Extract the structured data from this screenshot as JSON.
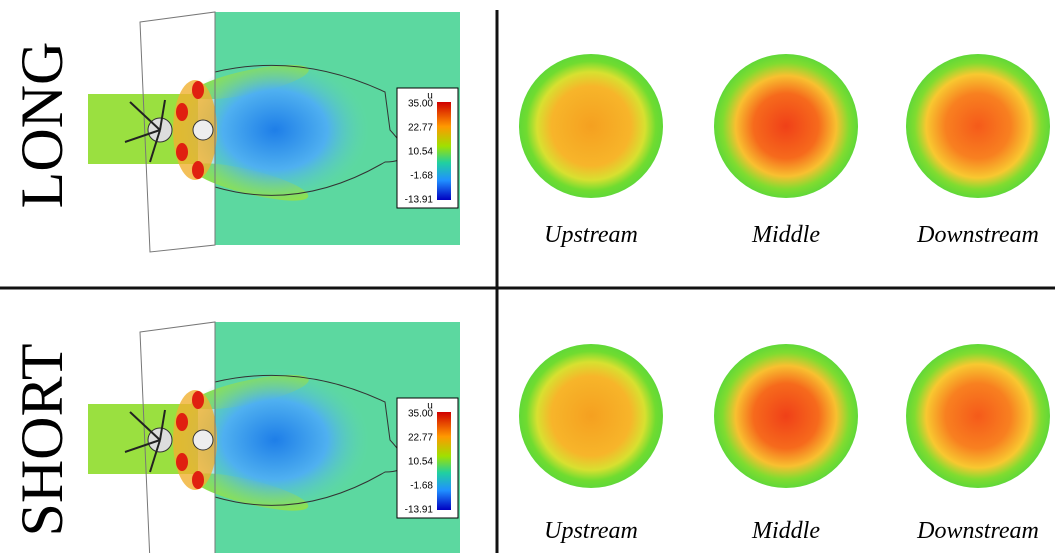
{
  "rows": [
    {
      "label": "LONG",
      "colorbar": {
        "title": "u",
        "ticks": [
          "35.00",
          "22.77",
          "10.54",
          "-1.68",
          "-13.91"
        ]
      },
      "sections": [
        "Upstream",
        "Middle",
        "Downstream"
      ]
    },
    {
      "label": "SHORT",
      "colorbar": {
        "title": "u",
        "ticks": [
          "35.00",
          "22.77",
          "10.54",
          "-1.68",
          "-13.91"
        ]
      },
      "sections": [
        "Upstream",
        "Middle",
        "Downstream"
      ]
    }
  ]
}
